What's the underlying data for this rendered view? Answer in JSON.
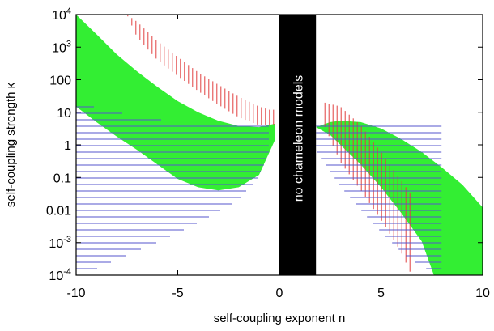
{
  "chart_data": {
    "type": "area",
    "title": "",
    "xlabel": "self-coupling exponent n",
    "ylabel": "self-coupling strength κ",
    "xlim": [
      -10,
      10
    ],
    "ylim": [
      0.0001,
      10000
    ],
    "y_scale": "log",
    "grid": false,
    "x_ticks": [
      "-10",
      "-5",
      "0",
      "5",
      "10"
    ],
    "y_ticks": [
      {
        "base": "10",
        "exp": "4"
      },
      {
        "base": "10",
        "exp": "3"
      },
      {
        "base": "100",
        "exp": ""
      },
      {
        "base": "10",
        "exp": ""
      },
      {
        "base": "1",
        "exp": ""
      },
      {
        "base": "0.1",
        "exp": ""
      },
      {
        "base": "0.01",
        "exp": ""
      },
      {
        "base": "10",
        "exp": "-3"
      },
      {
        "base": "10",
        "exp": "-4"
      }
    ],
    "excluded_band": {
      "x_range": [
        0,
        1.8
      ],
      "label": "no chameleon models"
    },
    "series": [
      {
        "style": "solid-fill",
        "color": "#33ee33",
        "regions": [
          {
            "upper": [
              [
                -10,
                10000
              ],
              [
                -9,
                2500
              ],
              [
                -8,
                600
              ],
              [
                -7,
                180
              ],
              [
                -6,
                60
              ],
              [
                -5,
                22
              ],
              [
                -4,
                10
              ],
              [
                -3,
                5.5
              ],
              [
                -2,
                3.8
              ],
              [
                -1,
                3.5
              ],
              [
                -0.2,
                4.5
              ]
            ],
            "lower": [
              [
                -10,
                15
              ],
              [
                -9,
                5
              ],
              [
                -8,
                1.8
              ],
              [
                -7,
                0.7
              ],
              [
                -6,
                0.25
              ],
              [
                -5,
                0.09
              ],
              [
                -4,
                0.05
              ],
              [
                -3,
                0.04
              ],
              [
                -2,
                0.05
              ],
              [
                -1,
                0.12
              ],
              [
                -0.2,
                1.5
              ]
            ]
          },
          {
            "upper": [
              [
                1.8,
                3.5
              ],
              [
                2.5,
                5
              ],
              [
                3,
                5.5
              ],
              [
                4,
                5
              ],
              [
                5,
                3.2
              ],
              [
                6,
                1.5
              ],
              [
                7,
                0.6
              ],
              [
                8,
                0.2
              ],
              [
                9,
                0.06
              ],
              [
                10,
                0.012
              ]
            ],
            "lower": [
              [
                1.8,
                3.5
              ],
              [
                2.5,
                2
              ],
              [
                3,
                1
              ],
              [
                4,
                0.25
              ],
              [
                5,
                0.05
              ],
              [
                6,
                0.008
              ],
              [
                7,
                0.0011
              ],
              [
                7.6,
                0.0001
              ],
              [
                10,
                0.0001
              ]
            ]
          }
        ]
      },
      {
        "style": "vertical-hatch",
        "color": "#e04040",
        "regions": [
          {
            "upper": [
              [
                -7.5,
                10000
              ],
              [
                -7,
                6000
              ],
              [
                -6,
                1500
              ],
              [
                -5,
                500
              ],
              [
                -4,
                170
              ],
              [
                -3,
                70
              ],
              [
                -2,
                30
              ],
              [
                -1,
                15
              ],
              [
                -0.5,
                12
              ],
              [
                -0.2,
                12
              ]
            ],
            "lower": [
              [
                -7.5,
                10000
              ],
              [
                -7,
                2000
              ],
              [
                -6,
                400
              ],
              [
                -5,
                130
              ],
              [
                -4,
                45
              ],
              [
                -3,
                17
              ],
              [
                -2,
                7
              ],
              [
                -1,
                4
              ],
              [
                -0.5,
                4
              ],
              [
                -0.2,
                4
              ]
            ]
          },
          {
            "upper": [
              [
                2.2,
                20
              ],
              [
                3,
                15
              ],
              [
                4,
                4
              ],
              [
                5,
                0.6
              ],
              [
                6,
                0.08
              ],
              [
                7,
                0.01
              ],
              [
                7.5,
                0.0025
              ],
              [
                8,
                0.0007
              ],
              [
                8.8,
                0.0001
              ]
            ],
            "lower": [
              [
                2.2,
                4
              ],
              [
                3,
                0.3
              ],
              [
                4,
                0.04
              ],
              [
                5,
                0.005
              ],
              [
                6,
                0.0005
              ],
              [
                6.5,
                0.0001
              ]
            ]
          }
        ]
      },
      {
        "style": "horizontal-hatch",
        "color": "#5555cc",
        "regions": [
          {
            "upper": [
              [
                -10,
                20
              ],
              [
                -8,
                10
              ],
              [
                -6,
                6
              ],
              [
                -4,
                5
              ],
              [
                -2,
                5
              ],
              [
                -0.5,
                5
              ]
            ],
            "lower": [
              [
                -10,
                0.00015
              ],
              [
                -9,
                0.00015
              ],
              [
                -8,
                0.0003
              ],
              [
                -6,
                0.001
              ],
              [
                -4,
                0.004
              ],
              [
                -2,
                0.02
              ],
              [
                -1,
                0.1
              ],
              [
                -0.5,
                0.6
              ]
            ]
          },
          {
            "upper": [
              [
                1.8,
                5
              ],
              [
                3,
                5
              ],
              [
                5,
                5
              ],
              [
                7,
                5
              ],
              [
                8,
                5
              ]
            ],
            "lower": [
              [
                1.8,
                0.6
              ],
              [
                3,
                0.05
              ],
              [
                4,
                0.01
              ],
              [
                5,
                0.002
              ],
              [
                6,
                0.0005
              ],
              [
                7,
                0.00017
              ],
              [
                8,
                0.00012
              ]
            ]
          }
        ]
      }
    ]
  }
}
